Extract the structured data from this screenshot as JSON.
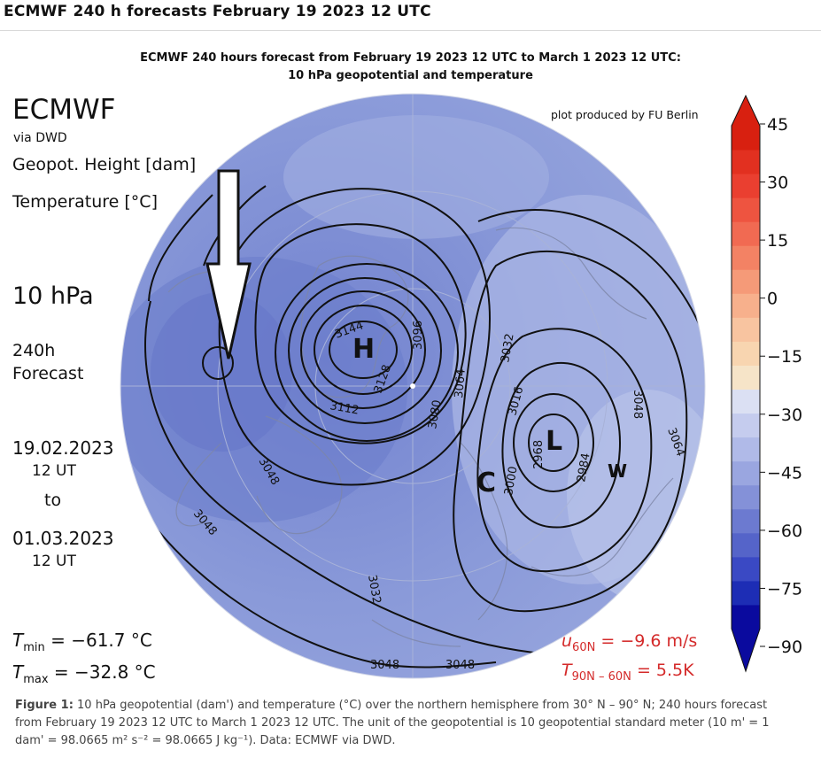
{
  "page_title": "ECMWF 240 h forecasts February 19 2023 12 UTC",
  "figure_title_line1": "ECMWF 240 hours forecast from February 19 2023 12 UTC to March 1 2023 12 UTC:",
  "figure_title_line2": "10 hPa geopotential and temperature",
  "labels": {
    "model": "ECMWF",
    "via": "via DWD",
    "geopot": "Geopot. Height [dam]",
    "temperature": "Temperature [°C]",
    "level": "10 hPa",
    "forecast_hours": "240h",
    "forecast_word": "Forecast",
    "init_date": "19.02.2023",
    "init_time": "12 UT",
    "to": "to",
    "valid_date": "01.03.2023",
    "valid_time": "12 UT",
    "produced_by": "plot produced by FU Berlin",
    "tmin_label": "T",
    "tmin_sub": "min",
    "tmin_value": " = −61.7 °C",
    "tmax_label": "T",
    "tmax_sub": "max",
    "tmax_value": " = −32.8 °C",
    "u60_label": "u",
    "u60_sub": "60N",
    "u60_value": " = −9.6 m/s",
    "t60_label": "T",
    "t60_sub": "90N – 60N",
    "t60_value": " = 5.5K"
  },
  "map": {
    "pressure_centers": [
      {
        "label": "H"
      },
      {
        "label": "L"
      },
      {
        "label": "C"
      },
      {
        "label": "W"
      }
    ],
    "contour_labels": [
      "3144",
      "3112",
      "3128",
      "3096",
      "3080",
      "3064",
      "3048",
      "3032",
      "3016",
      "3000",
      "2968",
      "2984",
      "3048",
      "3064",
      "3048",
      "3048",
      "3048",
      "3032"
    ],
    "colors": {
      "background_cold": "#8f9fdd",
      "core_cold": "#6b7ccc",
      "warm_sector": "#b0bde6"
    }
  },
  "colorbar": {
    "ticks": [
      "45",
      "30",
      "15",
      "0",
      "−15",
      "−30",
      "−45",
      "−60",
      "−75",
      "−90"
    ],
    "colors": [
      "#0a0a9e",
      "#1d2db5",
      "#3a49c4",
      "#5564c9",
      "#6c7ad0",
      "#8491d8",
      "#9aa6e0",
      "#b0bae8",
      "#c5ccee",
      "#dbe0f3",
      "#f6e4c8",
      "#f8d5b0",
      "#f8c4a0",
      "#f7b08c",
      "#f59a78",
      "#f38264",
      "#f16a52",
      "#ee5440",
      "#ea3f30",
      "#e23020",
      "#d82010"
    ]
  },
  "caption": {
    "figure_label": "Figure 1:",
    "text": " 10 hPa geopotential (dam') and temperature (°C) over the northern hemisphere from 30° N – 90° N; 240 hours forecast from February 19 2023 12 UTC to March 1 2023 12 UTC. The unit of the geopotential is 10 geopotential standard meter (10 m' = 1 dam' = 98.0665 m² s⁻² = 98.0665 J kg⁻¹). Data: ECMWF via DWD."
  }
}
